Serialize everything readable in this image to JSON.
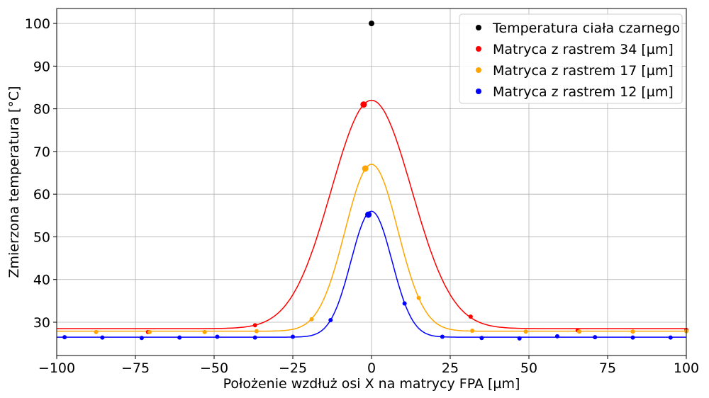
{
  "chart_data": {
    "type": "line",
    "title": "",
    "xlabel": "Położenie wzdłuż osi X na matrycy FPA [µm]",
    "ylabel": "Zmierzona temperatura [°C]",
    "xlim": [
      -100,
      100
    ],
    "ylim": [
      22.2,
      103.5
    ],
    "xticks": [
      -100,
      -75,
      -50,
      -25,
      0,
      25,
      50,
      75,
      100
    ],
    "xtick_labels": [
      "−100",
      "−75",
      "−50",
      "−25",
      "0",
      "25",
      "50",
      "75",
      "100"
    ],
    "yticks": [
      30,
      40,
      50,
      60,
      70,
      80,
      90,
      100
    ],
    "ytick_labels": [
      "30",
      "40",
      "50",
      "60",
      "70",
      "80",
      "90",
      "100"
    ],
    "grid": true,
    "legend_position": "top-right",
    "series": [
      {
        "name": "Temperatura ciała czarnego",
        "color": "#000000",
        "points": [
          [
            0,
            100
          ]
        ],
        "fit": null
      },
      {
        "name": "Matryca z rastrem 34 [µm]",
        "color": "#ff0000",
        "peak_point": [
          -2.5,
          81
        ],
        "points": [
          [
            -71,
            27.7
          ],
          [
            -37,
            29.3
          ],
          [
            31.5,
            31.3
          ],
          [
            65.5,
            28.1
          ],
          [
            100,
            28.2
          ]
        ],
        "fit": {
          "baseline": 28.5,
          "peak": 82,
          "center": 0,
          "sigma": 12.8
        }
      },
      {
        "name": "Matryca z rastrem 17 [µm]",
        "color": "#ffa500",
        "peak_point": [
          -2,
          66
        ],
        "points": [
          [
            -87.5,
            27.7
          ],
          [
            -70.5,
            27.7
          ],
          [
            -53,
            27.7
          ],
          [
            -36.5,
            27.9
          ],
          [
            -19,
            30.7
          ],
          [
            15,
            35.7
          ],
          [
            32,
            28
          ],
          [
            49,
            27.8
          ],
          [
            66,
            27.8
          ],
          [
            83,
            27.8
          ],
          [
            100,
            27.9
          ]
        ],
        "fit": {
          "baseline": 27.9,
          "peak": 67,
          "center": 0,
          "sigma": 8.35
        }
      },
      {
        "name": "Matryca z rastrem 12 [µm]",
        "color": "#0000ff",
        "peak_point": [
          -1,
          55.2
        ],
        "points": [
          [
            -97.5,
            26.5
          ],
          [
            -85.5,
            26.4
          ],
          [
            -73,
            26.3
          ],
          [
            -61,
            26.4
          ],
          [
            -49,
            26.6
          ],
          [
            -37,
            26.4
          ],
          [
            -25,
            26.6
          ],
          [
            -13,
            30.5
          ],
          [
            10.5,
            34.4
          ],
          [
            22.5,
            26.6
          ],
          [
            35,
            26.3
          ],
          [
            47,
            26.2
          ],
          [
            59,
            26.7
          ],
          [
            71,
            26.5
          ],
          [
            83,
            26.4
          ],
          [
            95,
            26.4
          ]
        ],
        "fit": {
          "baseline": 26.5,
          "peak": 56,
          "center": 0,
          "sigma": 6.5
        }
      }
    ]
  }
}
